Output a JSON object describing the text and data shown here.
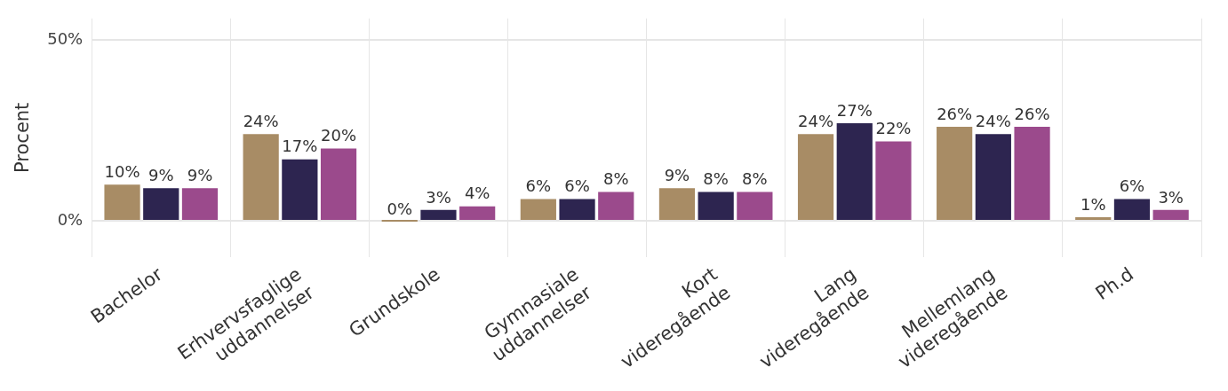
{
  "chart_data": {
    "type": "bar",
    "ylabel": "Procent",
    "categories": [
      "Bachelor",
      "Erhvervsfaglige uddannelser",
      "Grundskole",
      "Gymnasiale uddannelser",
      "Kort videregående",
      "Lang videregående",
      "Mellemlang videregående",
      "Ph.d"
    ],
    "series": [
      {
        "color": "#a88c65",
        "values": [
          10,
          24,
          0,
          6,
          9,
          24,
          26,
          1
        ],
        "value_labels": [
          "10%",
          "24%",
          "0%",
          "6%",
          "9%",
          "24%",
          "26%",
          "1%"
        ]
      },
      {
        "color": "#2d2550",
        "values": [
          9,
          17,
          3,
          6,
          8,
          27,
          24,
          6
        ],
        "value_labels": [
          "9%",
          "17%",
          "3%",
          "6%",
          "8%",
          "27%",
          "24%",
          "6%"
        ]
      },
      {
        "color": "#9b4a8c",
        "values": [
          9,
          20,
          4,
          8,
          8,
          22,
          26,
          3
        ],
        "value_labels": [
          "9%",
          "20%",
          "4%",
          "8%",
          "8%",
          "22%",
          "26%",
          "3%"
        ]
      }
    ],
    "ylim": [
      -10,
      56
    ],
    "yticks": [
      {
        "value": 0,
        "label": "0%"
      },
      {
        "value": 50,
        "label": "50%"
      }
    ],
    "grid": true,
    "legend": false
  }
}
